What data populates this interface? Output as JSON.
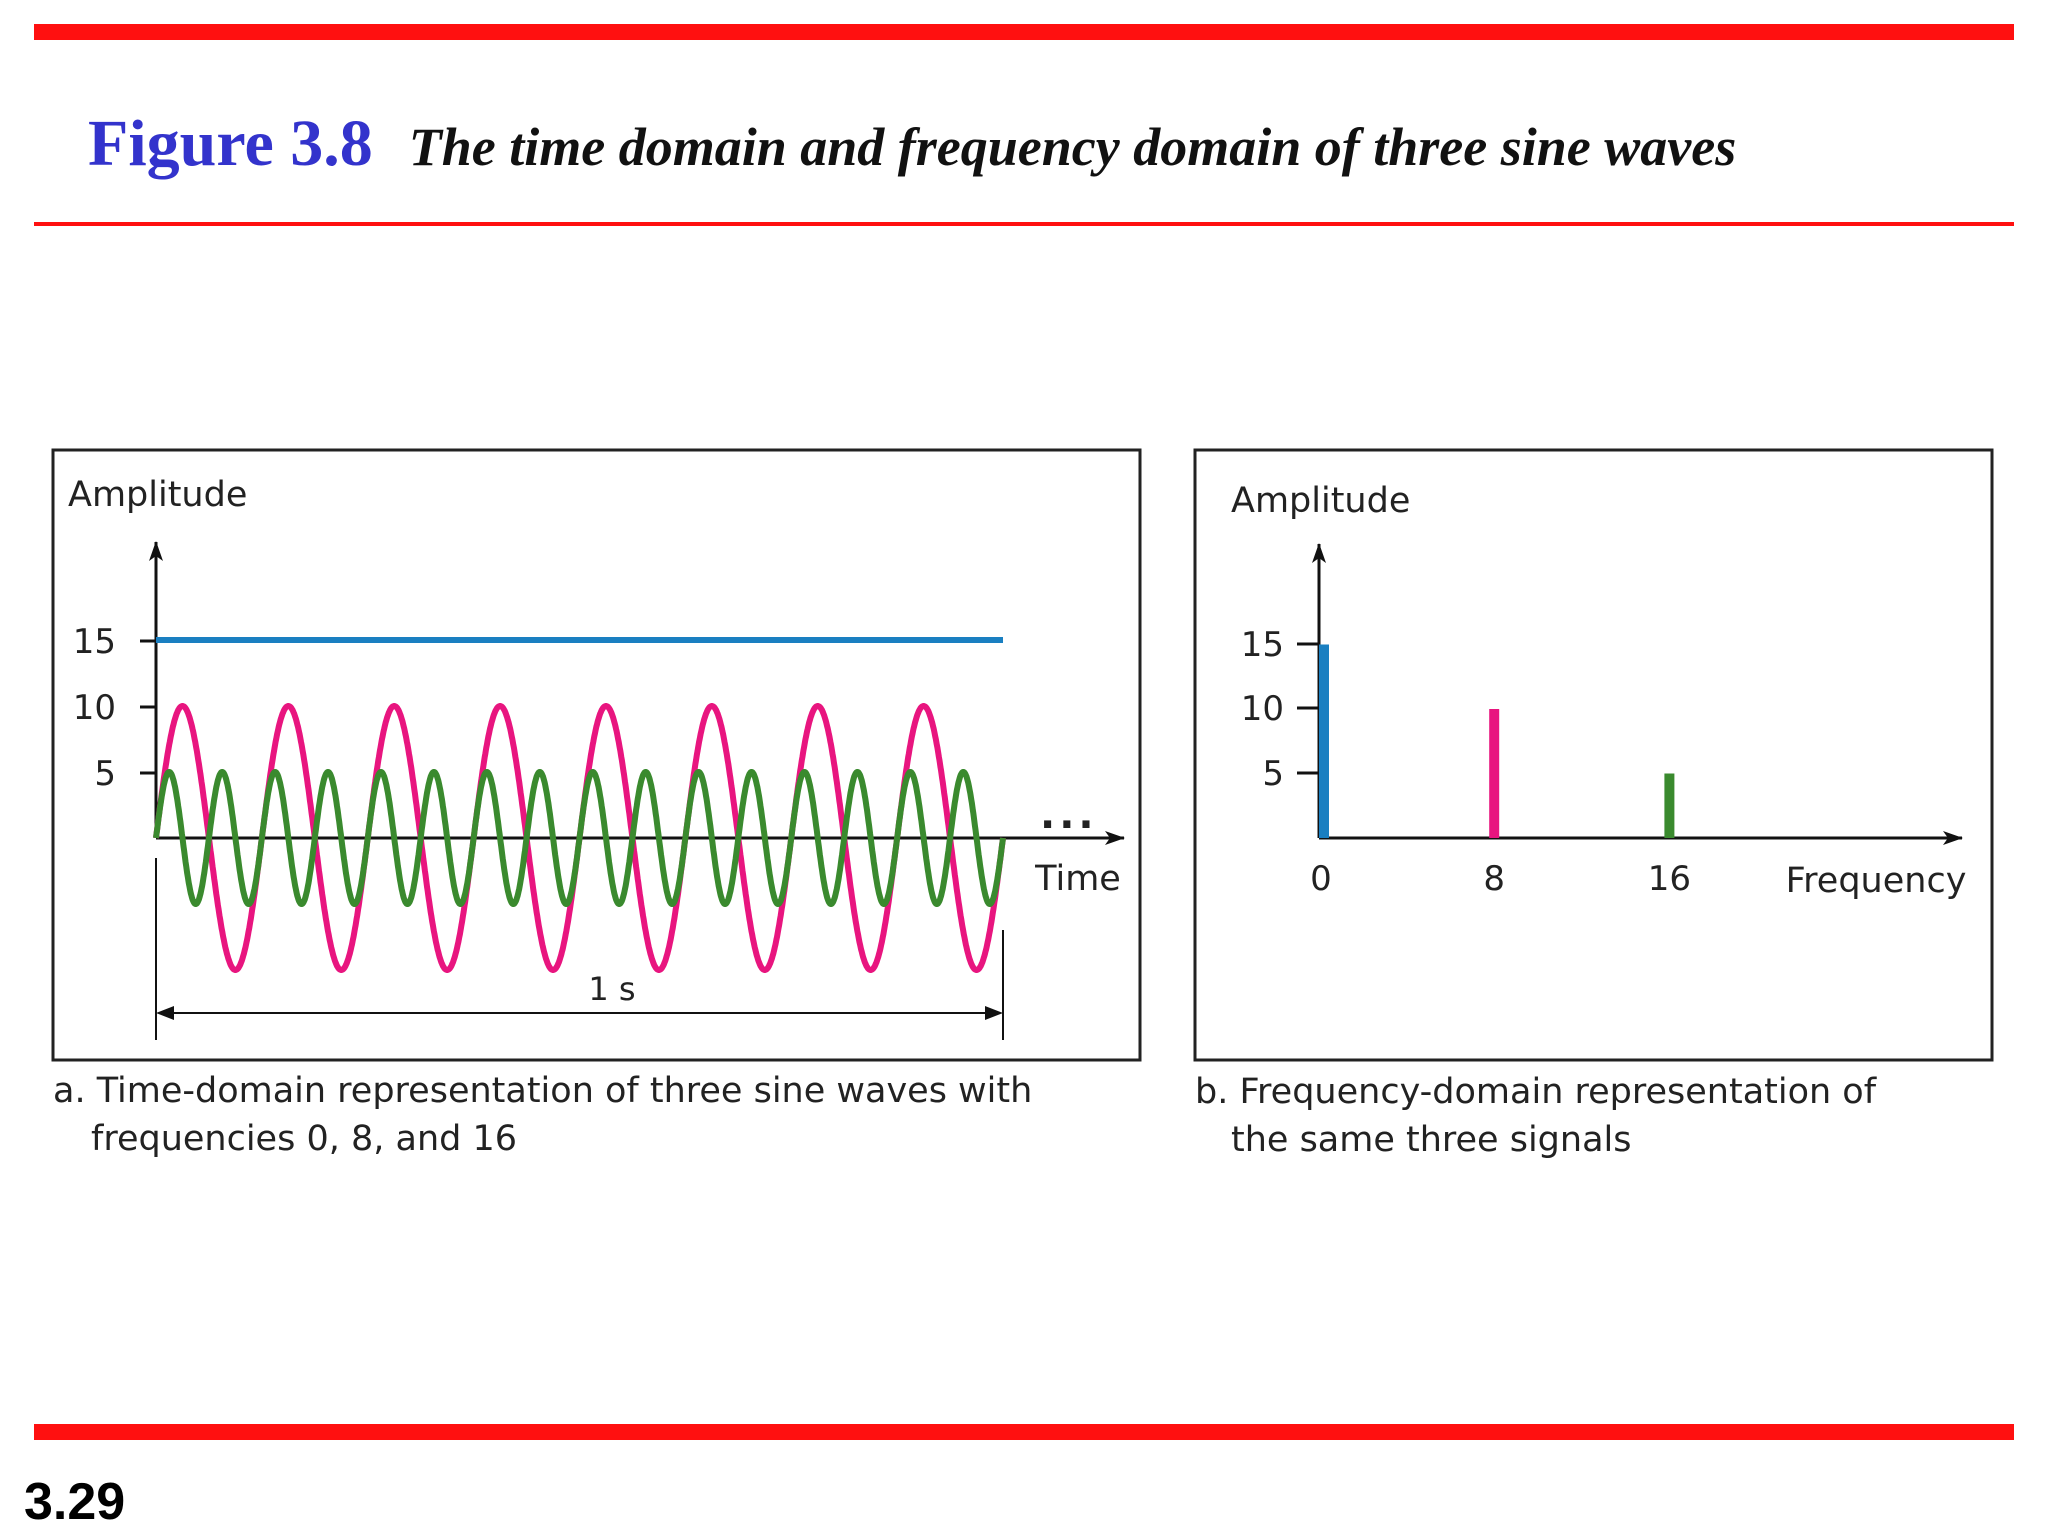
{
  "header": {
    "figure_number": "Figure 3.8",
    "figure_title": "The time domain and frequency domain of three sine waves"
  },
  "slide_number": "3.29",
  "colors": {
    "rule": "#ff1010",
    "figure_number": "#3333cc",
    "signal_f0": "#1a7fc1",
    "signal_f8": "#e8157f",
    "signal_f16": "#3a8a2e"
  },
  "chart_data": [
    {
      "type": "line",
      "panel": "a",
      "ylabel": "Amplitude",
      "xlabel": "Time",
      "yticks": [
        15,
        10,
        5
      ],
      "duration_label": "1 s",
      "continuation": "...",
      "caption_line1": "a. Time-domain representation of three sine waves with",
      "caption_line2": "frequencies 0, 8, and 16",
      "x_range": [
        0,
        1
      ],
      "series": [
        {
          "frequency": 0,
          "amplitude": 15,
          "color": "#1a7fc1"
        },
        {
          "frequency": 8,
          "amplitude": 10,
          "color": "#e8157f"
        },
        {
          "frequency": 16,
          "amplitude": 5,
          "color": "#3a8a2e"
        }
      ]
    },
    {
      "type": "bar",
      "panel": "b",
      "ylabel": "Amplitude",
      "xlabel": "Frequency",
      "yticks": [
        15,
        10,
        5
      ],
      "categories": [
        "0",
        "8",
        "16"
      ],
      "values": [
        15,
        10,
        5
      ],
      "colors": [
        "#1a7fc1",
        "#e8157f",
        "#3a8a2e"
      ],
      "caption_line1": "b. Frequency-domain representation of",
      "caption_line2": "the same three signals"
    }
  ]
}
